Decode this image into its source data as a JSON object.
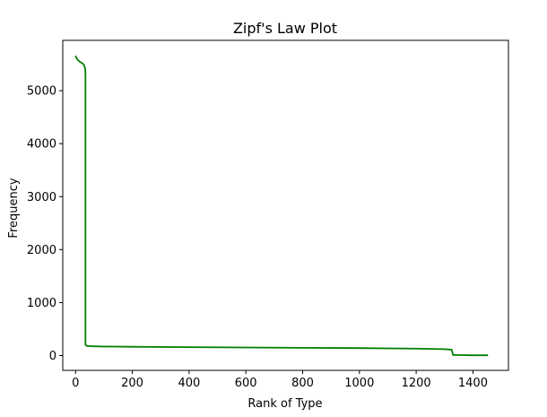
{
  "chart_data": {
    "type": "line",
    "title": "Zipf's Law Plot",
    "xlabel": "Rank of Type",
    "ylabel": "Frequency",
    "xlim": [
      -45,
      1525
    ],
    "ylim": [
      -280,
      5950
    ],
    "xticks": [
      0,
      200,
      400,
      600,
      800,
      1000,
      1200,
      1400
    ],
    "yticks": [
      0,
      1000,
      2000,
      3000,
      4000,
      5000
    ],
    "grid": false,
    "series": [
      {
        "color": "#008000",
        "points": [
          [
            0,
            5660
          ],
          [
            3,
            5620
          ],
          [
            8,
            5580
          ],
          [
            14,
            5550
          ],
          [
            20,
            5530
          ],
          [
            26,
            5510
          ],
          [
            30,
            5480
          ],
          [
            34,
            5420
          ],
          [
            35,
            5300
          ],
          [
            35,
            200
          ],
          [
            40,
            180
          ],
          [
            60,
            175
          ],
          [
            100,
            170
          ],
          [
            200,
            165
          ],
          [
            400,
            158
          ],
          [
            600,
            152
          ],
          [
            800,
            146
          ],
          [
            1000,
            140
          ],
          [
            1200,
            130
          ],
          [
            1300,
            120
          ],
          [
            1325,
            110
          ],
          [
            1330,
            10
          ],
          [
            1400,
            5
          ],
          [
            1453,
            5
          ]
        ]
      }
    ]
  }
}
